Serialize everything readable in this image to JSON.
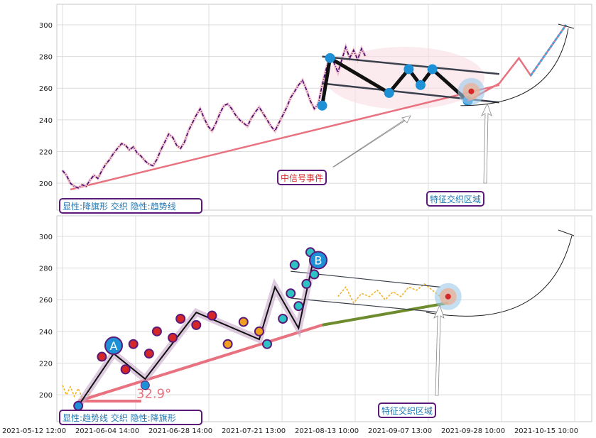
{
  "chart_data": [
    {
      "type": "line",
      "panel": "top",
      "ylim": [
        183,
        313
      ],
      "yticks": [
        200,
        220,
        240,
        260,
        280,
        300
      ],
      "grid": true,
      "price_series": [
        {
          "x": 0,
          "y": 208
        },
        {
          "x": 1,
          "y": 205
        },
        {
          "x": 2,
          "y": 200
        },
        {
          "x": 3,
          "y": 198
        },
        {
          "x": 4,
          "y": 197
        },
        {
          "x": 5,
          "y": 199
        },
        {
          "x": 6,
          "y": 198
        },
        {
          "x": 7,
          "y": 202
        },
        {
          "x": 8,
          "y": 205
        },
        {
          "x": 9,
          "y": 203
        },
        {
          "x": 10,
          "y": 208
        },
        {
          "x": 11,
          "y": 212
        },
        {
          "x": 12,
          "y": 215
        },
        {
          "x": 13,
          "y": 219
        },
        {
          "x": 14,
          "y": 222
        },
        {
          "x": 15,
          "y": 225
        },
        {
          "x": 16,
          "y": 224
        },
        {
          "x": 17,
          "y": 221
        },
        {
          "x": 18,
          "y": 223
        },
        {
          "x": 19,
          "y": 219
        },
        {
          "x": 20,
          "y": 217
        },
        {
          "x": 21,
          "y": 214
        },
        {
          "x": 22,
          "y": 212
        },
        {
          "x": 23,
          "y": 211
        },
        {
          "x": 24,
          "y": 215
        },
        {
          "x": 25,
          "y": 221
        },
        {
          "x": 26,
          "y": 226
        },
        {
          "x": 27,
          "y": 231
        },
        {
          "x": 28,
          "y": 229
        },
        {
          "x": 29,
          "y": 224
        },
        {
          "x": 30,
          "y": 222
        },
        {
          "x": 31,
          "y": 226
        },
        {
          "x": 32,
          "y": 233
        },
        {
          "x": 33,
          "y": 238
        },
        {
          "x": 34,
          "y": 243
        },
        {
          "x": 35,
          "y": 247
        },
        {
          "x": 36,
          "y": 241
        },
        {
          "x": 37,
          "y": 236
        },
        {
          "x": 38,
          "y": 233
        },
        {
          "x": 39,
          "y": 238
        },
        {
          "x": 40,
          "y": 244
        },
        {
          "x": 41,
          "y": 249
        },
        {
          "x": 42,
          "y": 250
        },
        {
          "x": 43,
          "y": 247
        },
        {
          "x": 44,
          "y": 243
        },
        {
          "x": 45,
          "y": 240
        },
        {
          "x": 46,
          "y": 238
        },
        {
          "x": 47,
          "y": 236
        },
        {
          "x": 48,
          "y": 241
        },
        {
          "x": 49,
          "y": 245
        },
        {
          "x": 50,
          "y": 248
        },
        {
          "x": 51,
          "y": 244
        },
        {
          "x": 52,
          "y": 240
        },
        {
          "x": 53,
          "y": 236
        },
        {
          "x": 54,
          "y": 233
        },
        {
          "x": 55,
          "y": 238
        },
        {
          "x": 56,
          "y": 243
        },
        {
          "x": 57,
          "y": 248
        },
        {
          "x": 58,
          "y": 254
        },
        {
          "x": 59,
          "y": 258
        },
        {
          "x": 60,
          "y": 262
        },
        {
          "x": 61,
          "y": 265
        },
        {
          "x": 62,
          "y": 259
        },
        {
          "x": 63,
          "y": 252
        },
        {
          "x": 64,
          "y": 247
        },
        {
          "x": 65,
          "y": 250
        },
        {
          "x": 66,
          "y": 262
        },
        {
          "x": 67,
          "y": 272
        },
        {
          "x": 68,
          "y": 280
        },
        {
          "x": 69,
          "y": 276
        },
        {
          "x": 70,
          "y": 270
        },
        {
          "x": 71,
          "y": 278
        },
        {
          "x": 72,
          "y": 286
        },
        {
          "x": 73,
          "y": 279
        },
        {
          "x": 74,
          "y": 284
        },
        {
          "x": 75,
          "y": 278
        },
        {
          "x": 76,
          "y": 285
        },
        {
          "x": 77,
          "y": 280
        }
      ],
      "trend_line": [
        {
          "x": 2,
          "y": 196
        },
        {
          "x": 111,
          "y": 262
        }
      ],
      "flag_upper": [
        {
          "x": 66,
          "y": 280
        },
        {
          "x": 111,
          "y": 269
        }
      ],
      "flag_lower": [
        {
          "x": 66,
          "y": 263
        },
        {
          "x": 111,
          "y": 251
        }
      ],
      "pattern_path": [
        {
          "x": 66,
          "y": 249
        },
        {
          "x": 68,
          "y": 279
        },
        {
          "x": 83,
          "y": 257
        },
        {
          "x": 88,
          "y": 272
        },
        {
          "x": 91,
          "y": 262
        },
        {
          "x": 94,
          "y": 272
        },
        {
          "x": 103,
          "y": 252
        }
      ],
      "projection": [
        {
          "x": 103,
          "y": 252
        },
        {
          "x": 111,
          "y": 263
        },
        {
          "x": 116,
          "y": 279
        },
        {
          "x": 119,
          "y": 268
        },
        {
          "x": 128,
          "y": 300
        }
      ],
      "labels": [
        {
          "text": "显性:降旗形 交织 隐性:趋势线",
          "x": 0,
          "y": 188
        },
        {
          "text": "中信号事件",
          "x": 49,
          "y": 202
        },
        {
          "text": "特征交织区域",
          "x": 96,
          "y": 189
        }
      ]
    },
    {
      "type": "line",
      "panel": "bottom",
      "ylim": [
        183,
        313
      ],
      "yticks": [
        200,
        220,
        240,
        260,
        280,
        300
      ],
      "x_tick_labels": [
        "2021-05-12 12:00",
        "2021-06-04 14:00",
        "2021-06-28 14:00",
        "2021-07-21 13:00",
        "2021-08-13 10:00",
        "2021-09-07 13:00",
        "2021-09-28 10:00",
        "2021-10-15 10:00"
      ],
      "grid": true,
      "price_series": [
        {
          "x": 0,
          "y": 206
        },
        {
          "x": 1,
          "y": 200
        },
        {
          "x": 2,
          "y": 205
        },
        {
          "x": 3,
          "y": 199
        },
        {
          "x": 4,
          "y": 204
        },
        {
          "x": 5,
          "y": 198
        },
        {
          "x": 6,
          "y": 197
        },
        {
          "x": 7,
          "y": 202
        },
        {
          "x": 70,
          "y": 262
        },
        {
          "x": 72,
          "y": 268
        },
        {
          "x": 74,
          "y": 258
        },
        {
          "x": 76,
          "y": 264
        },
        {
          "x": 78,
          "y": 262
        },
        {
          "x": 80,
          "y": 266
        },
        {
          "x": 82,
          "y": 260
        },
        {
          "x": 84,
          "y": 265
        },
        {
          "x": 86,
          "y": 262
        },
        {
          "x": 88,
          "y": 268
        },
        {
          "x": 90,
          "y": 266
        },
        {
          "x": 92,
          "y": 270
        },
        {
          "x": 94,
          "y": 266
        },
        {
          "x": 96,
          "y": 262
        }
      ],
      "trend_line": [
        {
          "x": 4,
          "y": 196
        },
        {
          "x": 66,
          "y": 244
        }
      ],
      "trend_ext": [
        {
          "x": 66,
          "y": 244
        },
        {
          "x": 98,
          "y": 258
        }
      ],
      "flag_upper": [
        {
          "x": 58,
          "y": 278
        },
        {
          "x": 96,
          "y": 268
        }
      ],
      "flag_lower": [
        {
          "x": 58,
          "y": 261
        },
        {
          "x": 96,
          "y": 252
        }
      ],
      "zigzag": [
        {
          "x": 4,
          "y": 193
        },
        {
          "x": 13,
          "y": 226
        },
        {
          "x": 21,
          "y": 210
        },
        {
          "x": 34,
          "y": 252
        },
        {
          "x": 50,
          "y": 235
        },
        {
          "x": 54,
          "y": 268
        },
        {
          "x": 60,
          "y": 242
        },
        {
          "x": 64,
          "y": 288
        }
      ],
      "angle_label": "32.9°",
      "labels": [
        {
          "text": "显性:趋势线 交织 隐性:降旗形",
          "x": 0,
          "y": 188
        },
        {
          "text": "特征交织区域",
          "x": 83,
          "y": 190
        }
      ],
      "markers": [
        {
          "text": "A",
          "x": 13,
          "y": 231
        },
        {
          "text": "B",
          "x": 65,
          "y": 285
        }
      ]
    }
  ]
}
